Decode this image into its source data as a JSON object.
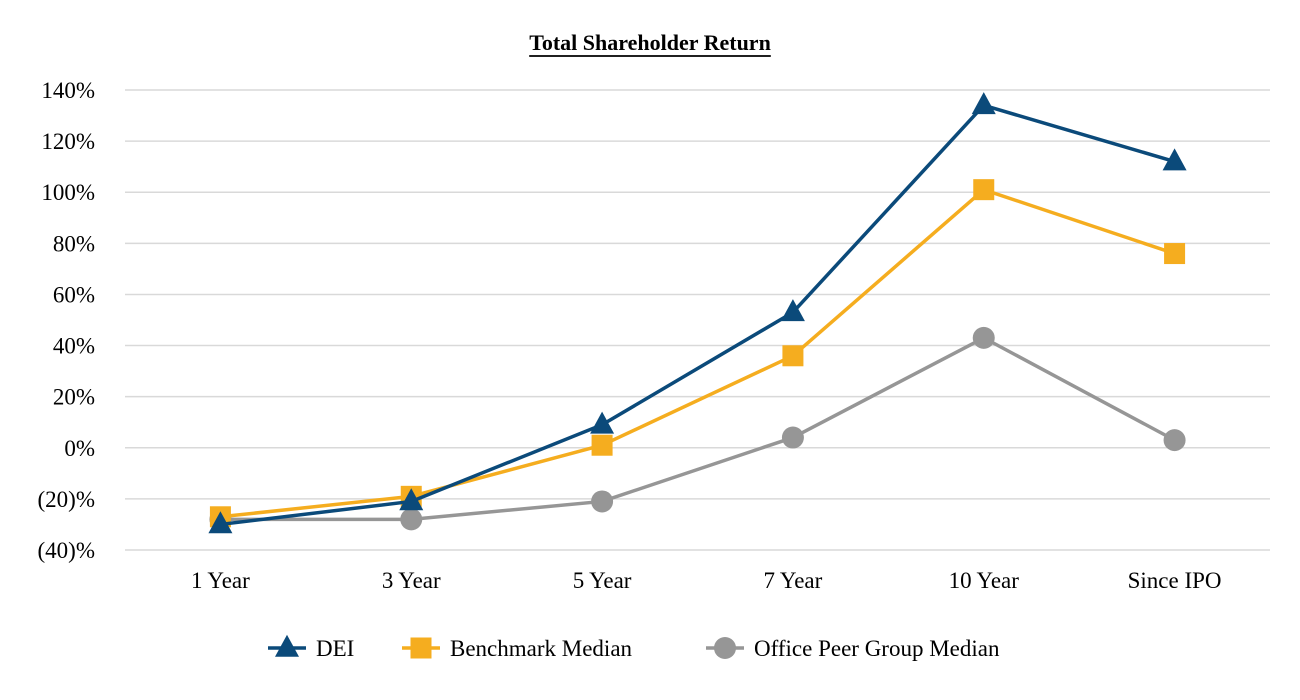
{
  "chart_data": {
    "type": "line",
    "title": "Total Shareholder Return",
    "xlabel": "",
    "ylabel": "",
    "categories": [
      "1 Year",
      "3 Year",
      "5 Year",
      "7 Year",
      "10 Year",
      "Since IPO"
    ],
    "ylim": [
      -40,
      140
    ],
    "yticks": [
      {
        "value": 140,
        "label": "140%"
      },
      {
        "value": 120,
        "label": "120%"
      },
      {
        "value": 100,
        "label": "100%"
      },
      {
        "value": 80,
        "label": "80%"
      },
      {
        "value": 60,
        "label": "60%"
      },
      {
        "value": 40,
        "label": "40%"
      },
      {
        "value": 20,
        "label": "20%"
      },
      {
        "value": 0,
        "label": "0%"
      },
      {
        "value": -20,
        "label": "(20)%"
      },
      {
        "value": -40,
        "label": "(40)%"
      }
    ],
    "grid": true,
    "legend_position": "bottom",
    "series": [
      {
        "name": "DEI",
        "marker": "triangle",
        "color": "#0b4a7a",
        "values": [
          -30,
          -21,
          9,
          53,
          134,
          112
        ]
      },
      {
        "name": "Benchmark Median",
        "marker": "square",
        "color": "#f5ad1f",
        "values": [
          -27,
          -19,
          1,
          36,
          101,
          76
        ]
      },
      {
        "name": "Office Peer Group Median",
        "marker": "circle",
        "color": "#969696",
        "values": [
          -28,
          -28,
          -21,
          4,
          43,
          3
        ]
      }
    ]
  }
}
